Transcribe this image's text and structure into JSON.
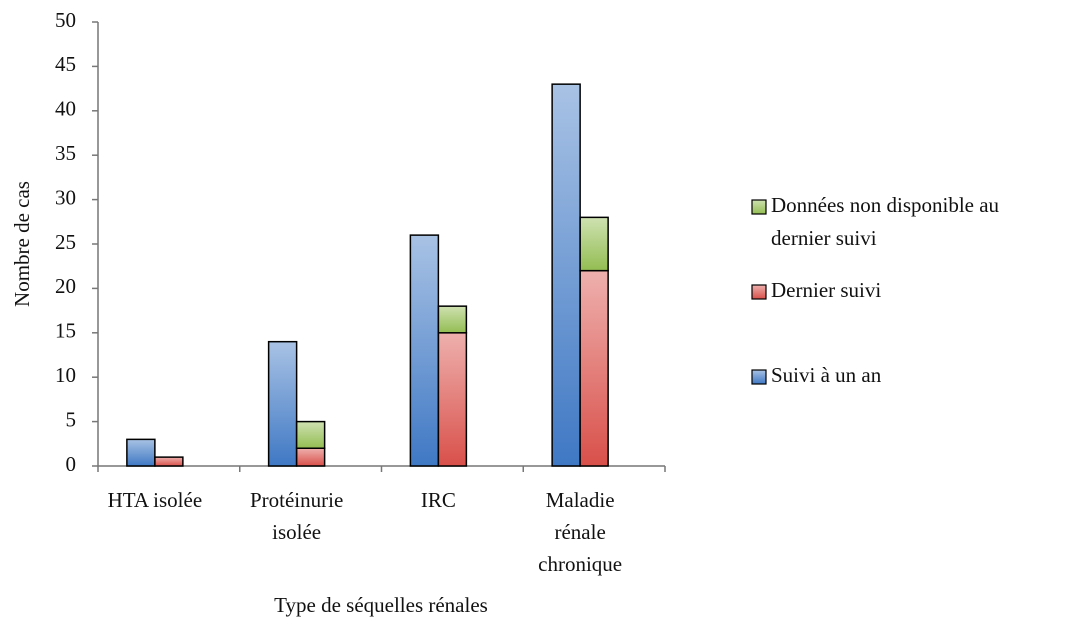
{
  "chart_data": {
    "type": "bar",
    "x_label": "Type de séquelles rénales",
    "y_label": "Nombre de cas",
    "categories": [
      "HTA isolée",
      "Protéinurie isolée",
      "IRC",
      "Maladie rénale chronique"
    ],
    "series": [
      {
        "name": "Suivi à un an",
        "color": "#3f78c4",
        "column": 0,
        "values": [
          3,
          14,
          26,
          43
        ]
      },
      {
        "name": "Dernier suivi",
        "color": "#d9504a",
        "column": 1,
        "values": [
          1,
          2,
          15,
          22
        ]
      },
      {
        "name": "Données non disponible au dernier suivi",
        "color": "#93bd52",
        "column": 1,
        "stacked_on": "Dernier suivi",
        "values": [
          0,
          3,
          3,
          6
        ]
      }
    ],
    "ylim": [
      0,
      50
    ],
    "yticks": [
      0,
      5,
      10,
      15,
      20,
      25,
      30,
      35,
      40,
      45,
      50
    ],
    "grid": false,
    "legend": "right"
  }
}
